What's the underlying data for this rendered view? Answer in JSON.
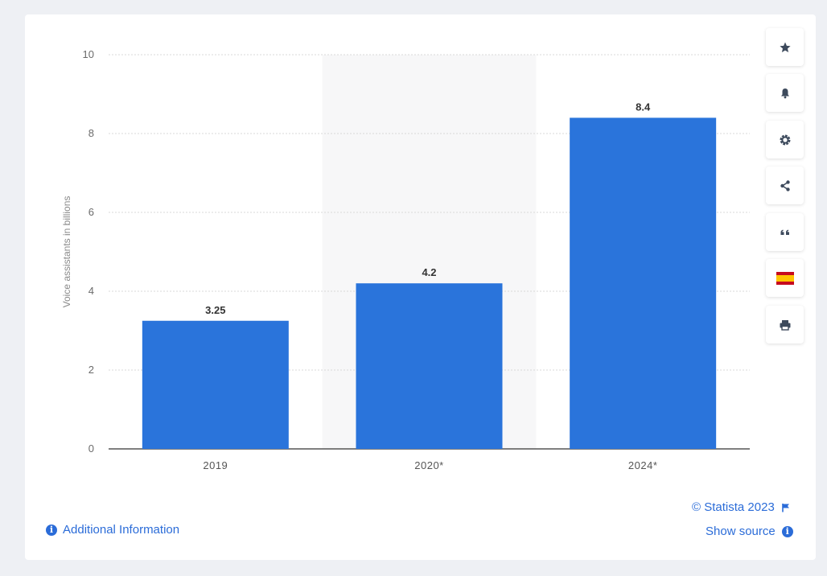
{
  "chart_data": {
    "type": "bar",
    "categories": [
      "2019",
      "2020*",
      "2024*"
    ],
    "values": [
      3.25,
      4.2,
      8.4
    ],
    "value_labels": [
      "3.25",
      "4.2",
      "8.4"
    ],
    "ylabel": "Voice assistants in billions",
    "ylim": [
      0,
      10
    ],
    "yticks": [
      0,
      2,
      4,
      6,
      8,
      10
    ],
    "grid": true,
    "bar_color": "#2a74db",
    "highlight_category": "2020*"
  },
  "toolbar": {
    "buttons": [
      {
        "icon": "star-icon",
        "name": "favorite-button"
      },
      {
        "icon": "bell-icon",
        "name": "notification-button"
      },
      {
        "icon": "gear-icon",
        "name": "settings-button"
      },
      {
        "icon": "share-icon",
        "name": "share-button"
      },
      {
        "icon": "quote-icon",
        "name": "cite-button"
      },
      {
        "icon": "spain-flag-icon",
        "name": "language-button"
      },
      {
        "icon": "print-icon",
        "name": "print-button"
      }
    ]
  },
  "footer": {
    "copyright": "© Statista 2023",
    "additional_info": "Additional Information",
    "show_source": "Show source"
  },
  "colors": {
    "accent": "#2b6cd8",
    "bar": "#2a74db",
    "background": "#eef0f4"
  }
}
